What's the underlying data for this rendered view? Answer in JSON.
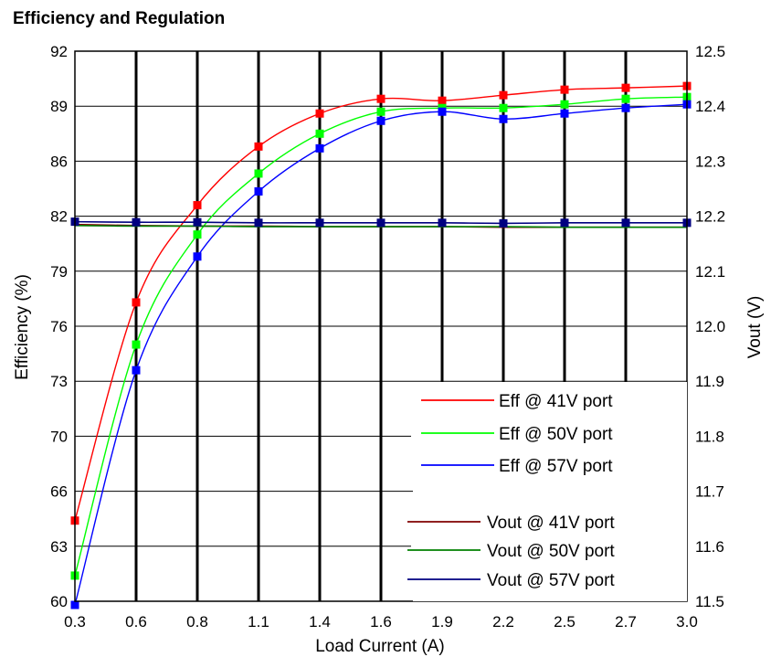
{
  "chart_data": {
    "type": "line",
    "title": "Efficiency and Regulation",
    "xlabel": "Load Current (A)",
    "ylabel": "Efficiency (%)",
    "y2label": "Vout (V)",
    "categories": [
      "0.3",
      "0.6",
      "0.8",
      "1.1",
      "1.4",
      "1.6",
      "1.9",
      "2.2",
      "2.5",
      "2.7",
      "3.0"
    ],
    "y_ticks": [
      "92",
      "89",
      "86",
      "82",
      "79",
      "76",
      "73",
      "70",
      "66",
      "63",
      "60"
    ],
    "y2_ticks": [
      "12.5",
      "12.4",
      "12.3",
      "12.2",
      "12.1",
      "12.0",
      "11.9",
      "11.8",
      "11.7",
      "11.6",
      "11.5"
    ],
    "ylim": [
      60,
      92
    ],
    "y2lim": [
      11.5,
      12.5
    ],
    "grid": true,
    "legend_position": "bottom-right",
    "series": [
      {
        "name": "Eff @ 41V port",
        "axis": "left",
        "color": "#ff0000",
        "markers": true,
        "values": [
          64.4,
          77.3,
          82.8,
          86.8,
          88.6,
          89.4,
          89.3,
          89.6,
          89.9,
          90.0,
          90.1
        ]
      },
      {
        "name": "Eff @ 50V port",
        "axis": "left",
        "color": "#00ff00",
        "markers": true,
        "values": [
          61.4,
          75.0,
          81.0,
          85.1,
          87.5,
          88.7,
          88.9,
          88.9,
          89.1,
          89.4,
          89.5
        ]
      },
      {
        "name": "Eff @ 57V port",
        "axis": "left",
        "color": "#0000ff",
        "markers": true,
        "values": [
          59.8,
          73.6,
          79.8,
          83.8,
          86.7,
          88.2,
          88.7,
          88.3,
          88.6,
          88.9,
          89.1
        ]
      },
      {
        "name": "Vout @ 41V port",
        "axis": "right",
        "color": "#800000",
        "markers": false,
        "values": [
          12.185,
          12.183,
          12.182,
          12.182,
          12.181,
          12.181,
          12.181,
          12.18,
          12.18,
          12.18,
          12.18
        ]
      },
      {
        "name": "Vout @ 50V port",
        "axis": "right",
        "color": "#008000",
        "markers": false,
        "values": [
          12.183,
          12.182,
          12.182,
          12.181,
          12.181,
          12.181,
          12.181,
          12.181,
          12.18,
          12.18,
          12.18
        ]
      },
      {
        "name": "Vout @ 57V port",
        "axis": "right",
        "color": "#000080",
        "markers": true,
        "values": [
          12.19,
          12.189,
          12.189,
          12.188,
          12.188,
          12.188,
          12.188,
          12.187,
          12.188,
          12.188,
          12.188
        ]
      }
    ]
  }
}
